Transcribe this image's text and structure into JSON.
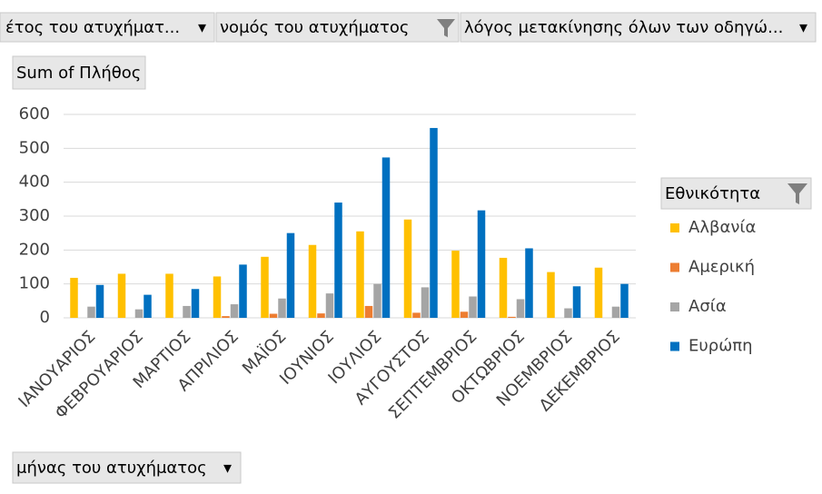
{
  "filter_buttons": [
    "έτος του ατυχήματ...",
    "νομός του ατυχήματος",
    "λόγος μετακίνησης όλων των οδηγώ..."
  ],
  "value_field": "Sum of Πλήθος",
  "axis_field": "μήνας του ατυχήματος",
  "chart_data": {
    "type": "bar",
    "categories": [
      "ΙΑΝΟΥΑΡΙΟΣ",
      "ΦΕΒΡΟΥΑΡΙΟΣ",
      "ΜΑΡΤΙΟΣ",
      "ΑΠΡΙΛΙΟΣ",
      "ΜΑΪΟΣ",
      "ΙΟΥΝΙΟΣ",
      "ΙΟΥΛΙΟΣ",
      "ΑΥΓΟΥΣΤΟΣ",
      "ΣΕΠΤΕΜΒΡΙΟΣ",
      "ΟΚΤΩΒΡΙΟΣ",
      "ΝΟΕΜΒΡΙΟΣ",
      "ΔΕΚΕΜΒΡΙΟΣ"
    ],
    "series": [
      {
        "name": "Αλβανία",
        "color": "#FFC000",
        "values": [
          118,
          130,
          130,
          122,
          180,
          215,
          255,
          290,
          198,
          177,
          135,
          148
        ]
      },
      {
        "name": "Αμερική",
        "color": "#ED7D31",
        "values": [
          0,
          0,
          0,
          5,
          12,
          13,
          35,
          15,
          18,
          3,
          0,
          0
        ]
      },
      {
        "name": "Ασία",
        "color": "#A5A5A5",
        "values": [
          33,
          25,
          35,
          40,
          57,
          72,
          100,
          90,
          63,
          55,
          28,
          33
        ]
      },
      {
        "name": "Ευρώπη",
        "color": "#0070C0",
        "values": [
          97,
          68,
          85,
          157,
          250,
          340,
          473,
          560,
          317,
          205,
          93,
          100
        ]
      }
    ],
    "legend_title": "Εθνικότητα",
    "legend": "right",
    "ylim": [
      0,
      600
    ],
    "yticks": [
      0,
      100,
      200,
      300,
      400,
      500,
      600
    ],
    "grid": true
  }
}
